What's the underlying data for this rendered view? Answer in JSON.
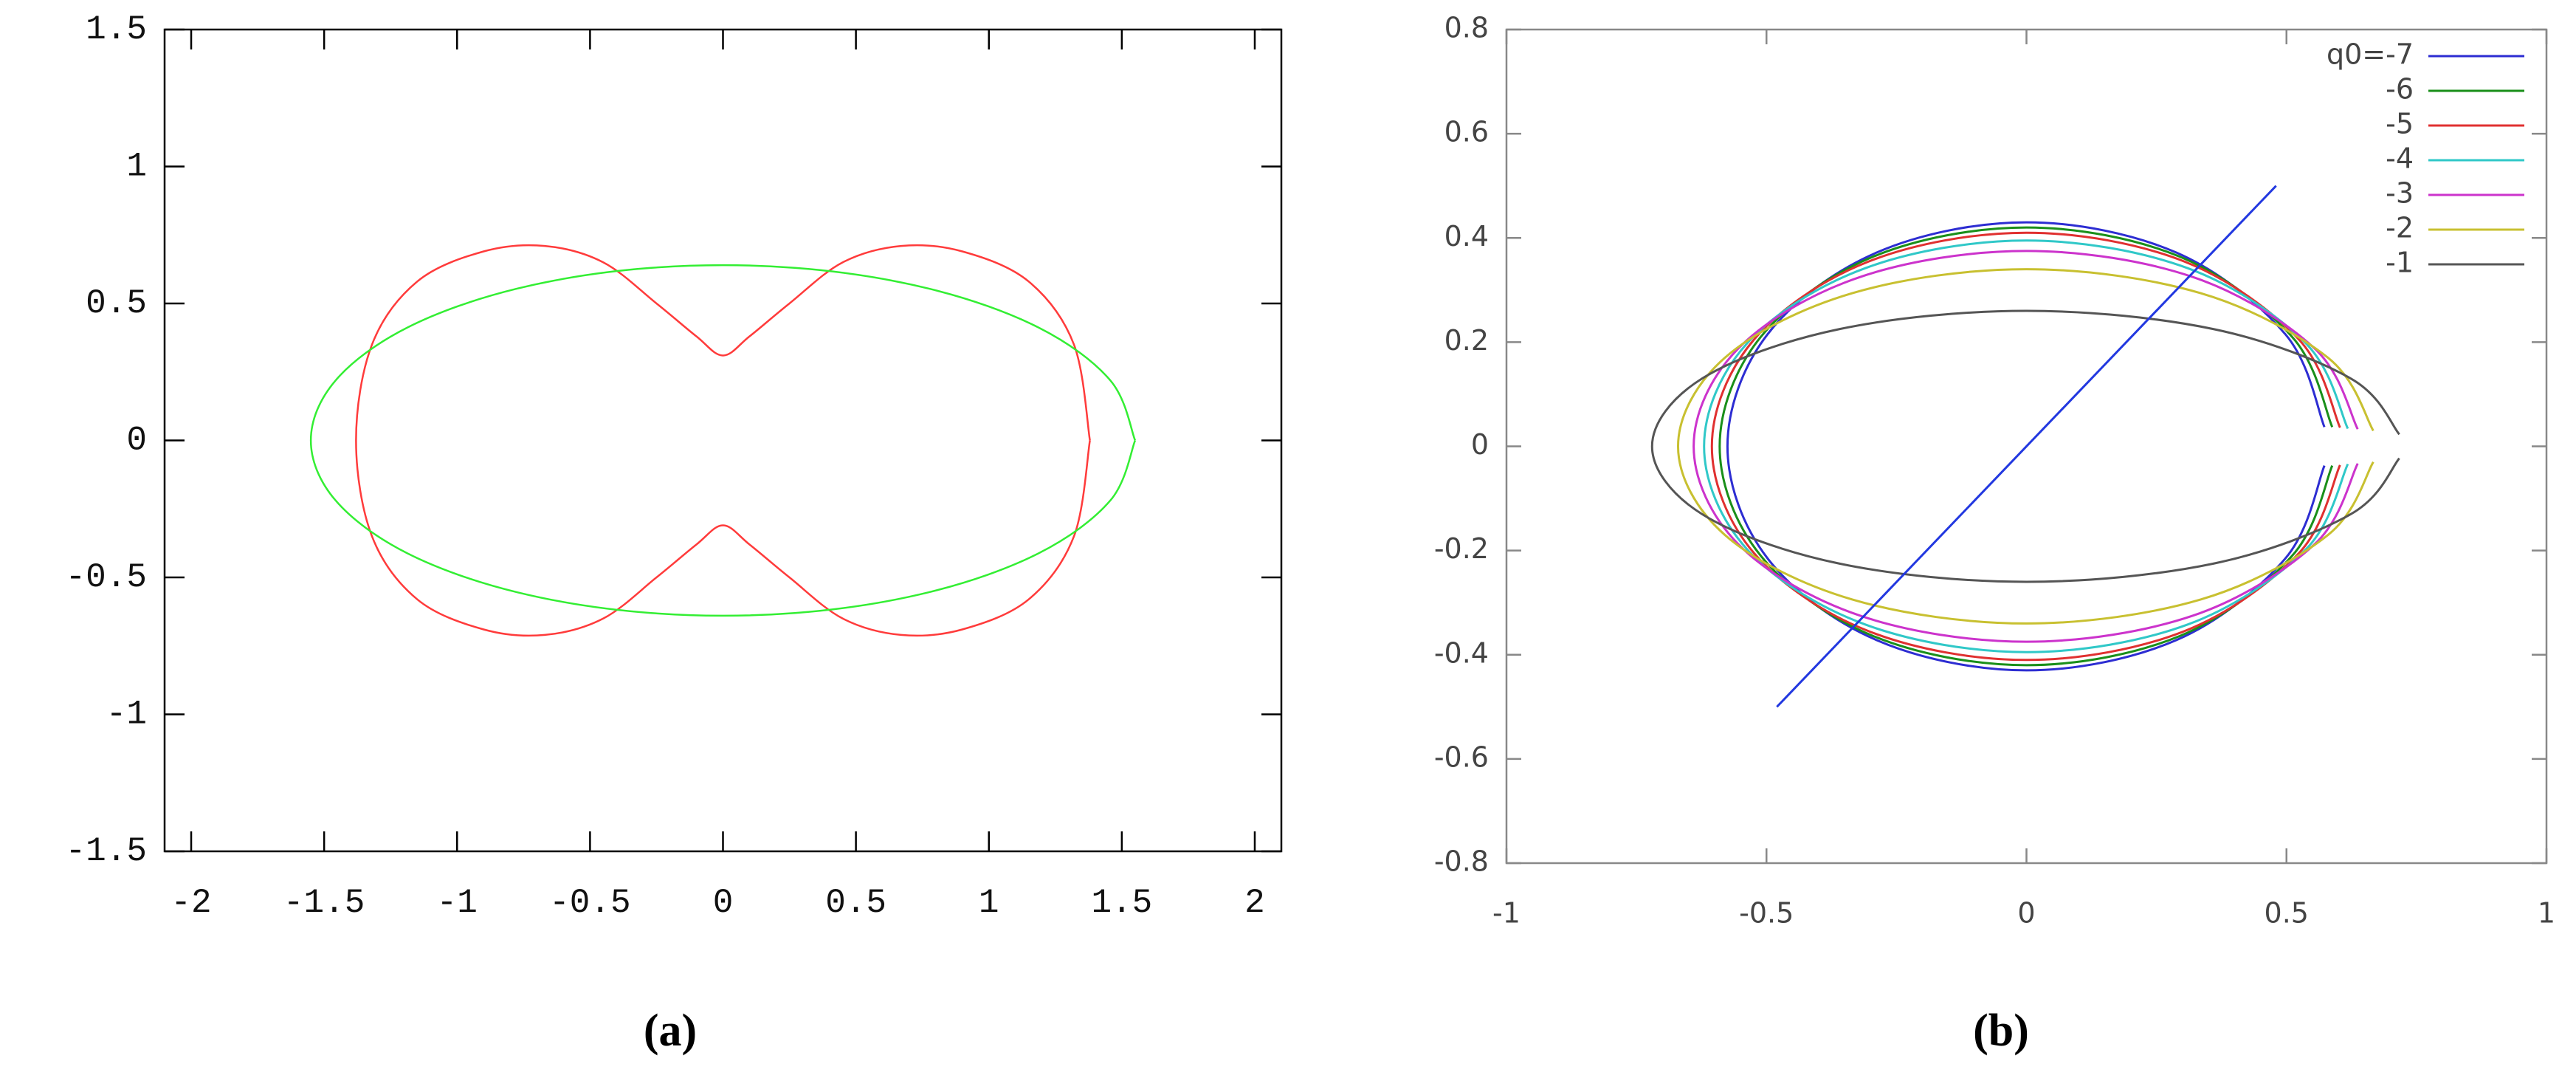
{
  "chart_data": [
    {
      "type": "line",
      "caption": "(a)",
      "xlim": [
        -2.1,
        2.1
      ],
      "ylim": [
        -1.5,
        1.5
      ],
      "xticks": [
        -2,
        -1.5,
        -1,
        -0.5,
        0,
        0.5,
        1,
        1.5,
        2
      ],
      "yticks": [
        -1.5,
        -1,
        -0.5,
        0,
        0.5,
        1,
        1.5
      ],
      "grid": false,
      "series": [
        {
          "color": "#ff3b3b",
          "x": [
            1.38,
            1.32,
            1.15,
            0.9,
            0.67,
            0.45,
            0.25,
            0.1,
            0,
            -0.1,
            -0.25,
            -0.45,
            -0.67,
            -0.9,
            -1.15,
            -1.32,
            -1.38,
            -1.32,
            -1.15,
            -0.9,
            -0.67,
            -0.45,
            -0.25,
            -0.1,
            0,
            0.1,
            0.25,
            0.45,
            0.67,
            0.9,
            1.15,
            1.32,
            1.38
          ],
          "values": [
            0,
            0.35,
            0.58,
            0.69,
            0.71,
            0.65,
            0.5,
            0.38,
            0.31,
            0.38,
            0.5,
            0.65,
            0.71,
            0.69,
            0.58,
            0.35,
            0,
            -0.35,
            -0.58,
            -0.69,
            -0.71,
            -0.65,
            -0.5,
            -0.38,
            -0.31,
            -0.38,
            -0.5,
            -0.65,
            -0.71,
            -0.69,
            -0.58,
            -0.35,
            0
          ]
        },
        {
          "color": "#33ee33",
          "x": [
            1.55,
            1.457,
            1.187,
            0.775,
            0.27,
            -0.27,
            -0.775,
            -1.187,
            -1.457,
            -1.55,
            -1.457,
            -1.187,
            -0.775,
            -0.27,
            0.27,
            0.775,
            1.187,
            1.457,
            1.55
          ],
          "values": [
            0,
            0.219,
            0.412,
            0.554,
            0.63,
            0.63,
            0.554,
            0.412,
            0.219,
            0,
            -0.219,
            -0.412,
            -0.554,
            -0.63,
            -0.63,
            -0.554,
            -0.412,
            -0.219,
            0
          ]
        }
      ]
    },
    {
      "type": "line",
      "caption": "(b)",
      "xlim": [
        -1,
        1
      ],
      "ylim": [
        -0.8,
        0.8
      ],
      "xticks": [
        -1,
        -0.5,
        0,
        0.5,
        1
      ],
      "yticks": [
        -0.8,
        -0.6,
        -0.4,
        -0.2,
        0,
        0.2,
        0.4,
        0.6,
        0.8
      ],
      "grid": false,
      "legend": "upper right",
      "series": [
        {
          "name": "q0=-7",
          "color": "#2d2dd2",
          "x": [
            0.573,
            0.498,
            0.288,
            0,
            -0.288,
            -0.498,
            -0.575,
            -0.498,
            -0.288,
            0,
            0.288,
            0.498,
            0.573
          ],
          "values": [
            0.037,
            0.215,
            0.372,
            0.43,
            0.372,
            0.215,
            0,
            -0.215,
            -0.372,
            -0.43,
            -0.372,
            -0.215,
            -0.037
          ]
        },
        {
          "name": "-6",
          "color": "#1a8f1a",
          "x": [
            0.588,
            0.511,
            0.295,
            0,
            -0.295,
            -0.511,
            -0.59,
            -0.511,
            -0.295,
            0,
            0.295,
            0.511,
            0.588
          ],
          "values": [
            0.037,
            0.21,
            0.364,
            0.42,
            0.364,
            0.21,
            0,
            -0.21,
            -0.364,
            -0.42,
            -0.364,
            -0.21,
            -0.037
          ]
        },
        {
          "name": "-5",
          "color": "#e03030",
          "x": [
            0.603,
            0.524,
            0.303,
            0,
            -0.303,
            -0.524,
            -0.605,
            -0.524,
            -0.303,
            0,
            0.303,
            0.524,
            0.603
          ],
          "values": [
            0.036,
            0.205,
            0.355,
            0.41,
            0.355,
            0.205,
            0,
            -0.205,
            -0.355,
            -0.41,
            -0.355,
            -0.205,
            -0.036
          ]
        },
        {
          "name": "-4",
          "color": "#30c8c8",
          "x": [
            0.618,
            0.537,
            0.31,
            0,
            -0.31,
            -0.537,
            -0.62,
            -0.537,
            -0.31,
            0,
            0.31,
            0.537,
            0.618
          ],
          "values": [
            0.034,
            0.198,
            0.342,
            0.395,
            0.342,
            0.198,
            0,
            -0.198,
            -0.342,
            -0.395,
            -0.342,
            -0.198,
            -0.034
          ]
        },
        {
          "name": "-3",
          "color": "#cc33cc",
          "x": [
            0.637,
            0.554,
            0.32,
            0,
            -0.32,
            -0.554,
            -0.64,
            -0.554,
            -0.32,
            0,
            0.32,
            0.554,
            0.637
          ],
          "values": [
            0.033,
            0.188,
            0.325,
            0.375,
            0.325,
            0.188,
            0,
            -0.188,
            -0.325,
            -0.375,
            -0.325,
            -0.188,
            -0.033
          ]
        },
        {
          "name": "-2",
          "color": "#c8c030",
          "x": [
            0.667,
            0.58,
            0.335,
            0,
            -0.335,
            -0.58,
            -0.67,
            -0.58,
            -0.335,
            0,
            0.335,
            0.58,
            0.667
          ],
          "values": [
            0.03,
            0.17,
            0.294,
            0.34,
            0.294,
            0.17,
            0,
            -0.17,
            -0.294,
            -0.34,
            -0.294,
            -0.17,
            -0.03
          ]
        },
        {
          "name": "-1",
          "color": "#555555",
          "x": [
            0.717,
            0.624,
            0.36,
            0,
            -0.36,
            -0.624,
            -0.72,
            -0.624,
            -0.36,
            0,
            0.36,
            0.624,
            0.717
          ],
          "values": [
            0.023,
            0.13,
            0.225,
            0.26,
            0.225,
            0.13,
            0,
            -0.13,
            -0.225,
            -0.26,
            -0.225,
            -0.13,
            -0.023
          ]
        },
        {
          "color": "#2238e0",
          "x": [
            -0.48,
            0.48
          ],
          "values": [
            -0.5,
            0.5
          ]
        }
      ]
    }
  ]
}
